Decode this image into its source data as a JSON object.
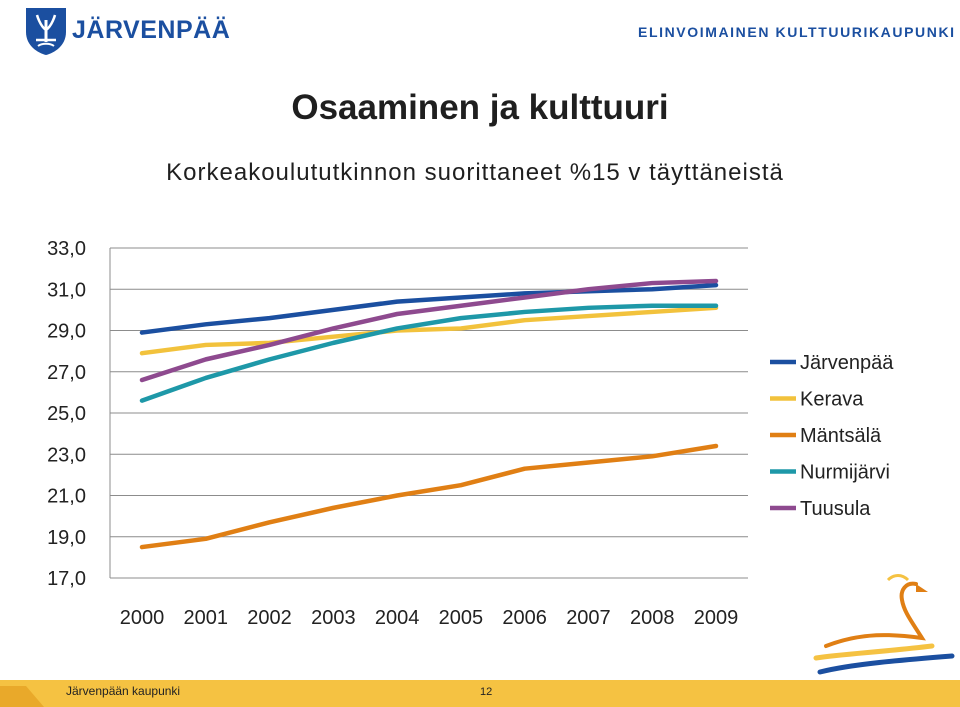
{
  "header": {
    "brand_name": "JÄRVENPÄÄ",
    "tagline": "ELINVOIMAINEN KULTTUURIKAUPUNKI"
  },
  "slide": {
    "title": "Osaaminen ja kulttuuri"
  },
  "footer": {
    "organization": "Järvenpään kaupunki",
    "page_number": "12"
  },
  "icons": {
    "coat_of_arms": "coat-of-arms-icon",
    "swan_logo": "swan-logo-icon"
  },
  "colors": {
    "brand_blue": "#1b4fa0",
    "footer_yellow": "#f5c242"
  },
  "chart_data": {
    "type": "line",
    "title": "Korkeakoulututkinnon suorittaneet %15 v täyttäneistä",
    "xlabel": "",
    "ylabel": "",
    "categories": [
      "2000",
      "2001",
      "2002",
      "2003",
      "2004",
      "2005",
      "2006",
      "2007",
      "2008",
      "2009"
    ],
    "ylim": [
      17,
      33
    ],
    "yticks": [
      "17,0",
      "19,0",
      "21,0",
      "23,0",
      "25,0",
      "27,0",
      "29,0",
      "31,0",
      "33,0"
    ],
    "grid": true,
    "legend": "right",
    "series": [
      {
        "name": "Järvenpää",
        "color": "#1b4fa0",
        "values": [
          28.9,
          29.3,
          29.6,
          30.0,
          30.4,
          30.6,
          30.8,
          30.9,
          31.0,
          31.2
        ]
      },
      {
        "name": "Kerava",
        "color": "#f2c23c",
        "values": [
          27.9,
          28.3,
          28.4,
          28.7,
          29.0,
          29.1,
          29.5,
          29.7,
          29.9,
          30.1
        ]
      },
      {
        "name": "Mäntsälä",
        "color": "#e07f14",
        "values": [
          18.5,
          18.9,
          19.7,
          20.4,
          21.0,
          21.5,
          22.3,
          22.6,
          22.9,
          23.4
        ]
      },
      {
        "name": "Nurmijärvi",
        "color": "#1e98a8",
        "values": [
          25.6,
          26.7,
          27.6,
          28.4,
          29.1,
          29.6,
          29.9,
          30.1,
          30.2,
          30.2
        ]
      },
      {
        "name": "Tuusula",
        "color": "#8e4a8f",
        "values": [
          26.6,
          27.6,
          28.3,
          29.1,
          29.8,
          30.2,
          30.6,
          31.0,
          31.3,
          31.4
        ]
      }
    ]
  }
}
